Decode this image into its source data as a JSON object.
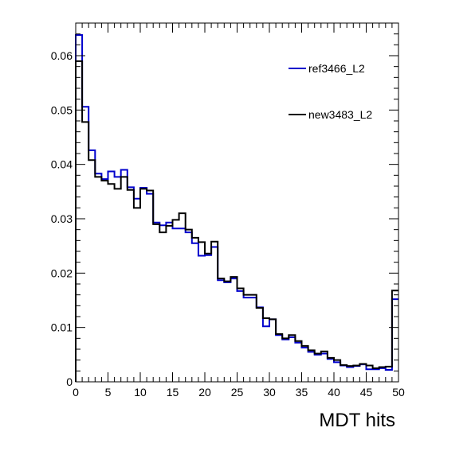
{
  "chart_data": {
    "type": "line",
    "title": "",
    "xlabel": "MDT hits",
    "ylabel": "",
    "xlim": [
      0,
      50
    ],
    "ylim": [
      0,
      0.066
    ],
    "x_major_ticks": [
      0,
      5,
      10,
      15,
      20,
      25,
      30,
      35,
      40,
      45,
      50
    ],
    "y_major_ticks": [
      0,
      0.01,
      0.02,
      0.03,
      0.04,
      0.05,
      0.06
    ],
    "x_tick_labels": [
      "0",
      "5",
      "10",
      "15",
      "20",
      "25",
      "30",
      "35",
      "40",
      "45",
      "50"
    ],
    "y_tick_labels": [
      "0",
      "0.01",
      "0.02",
      "0.03",
      "0.04",
      "0.05",
      "0.06"
    ],
    "grid": false,
    "legend_position": "top-right",
    "bin_edges_start": 0,
    "bin_width": 1,
    "series": [
      {
        "name": "ref3466_L2",
        "color": "#0000cc",
        "values": [
          0.0638,
          0.0506,
          0.0426,
          0.0383,
          0.0373,
          0.0387,
          0.0377,
          0.039,
          0.0358,
          0.0337,
          0.0357,
          0.0346,
          0.0293,
          0.0288,
          0.0293,
          0.0282,
          0.0282,
          0.0275,
          0.0255,
          0.0232,
          0.0233,
          0.0248,
          0.0187,
          0.0183,
          0.019,
          0.0167,
          0.0155,
          0.0155,
          0.0137,
          0.0102,
          0.0115,
          0.0086,
          0.0078,
          0.0082,
          0.0072,
          0.0063,
          0.0055,
          0.005,
          0.0052,
          0.0042,
          0.0036,
          0.003,
          0.0027,
          0.0029,
          0.0032,
          0.0023,
          0.0023,
          0.0025,
          0.0022,
          0.0152
        ]
      },
      {
        "name": "new3483_L2",
        "color": "#000000",
        "values": [
          0.059,
          0.0478,
          0.0408,
          0.0377,
          0.037,
          0.0364,
          0.0355,
          0.0377,
          0.0353,
          0.032,
          0.0355,
          0.0352,
          0.029,
          0.0275,
          0.0287,
          0.0298,
          0.031,
          0.028,
          0.0265,
          0.0257,
          0.0236,
          0.0258,
          0.019,
          0.0185,
          0.0193,
          0.0172,
          0.016,
          0.016,
          0.0136,
          0.0117,
          0.0115,
          0.0088,
          0.008,
          0.0086,
          0.0075,
          0.0066,
          0.0058,
          0.0052,
          0.0056,
          0.0044,
          0.004,
          0.0031,
          0.0029,
          0.003,
          0.0033,
          0.003,
          0.0025,
          0.0027,
          0.0028,
          0.0168
        ]
      }
    ]
  }
}
